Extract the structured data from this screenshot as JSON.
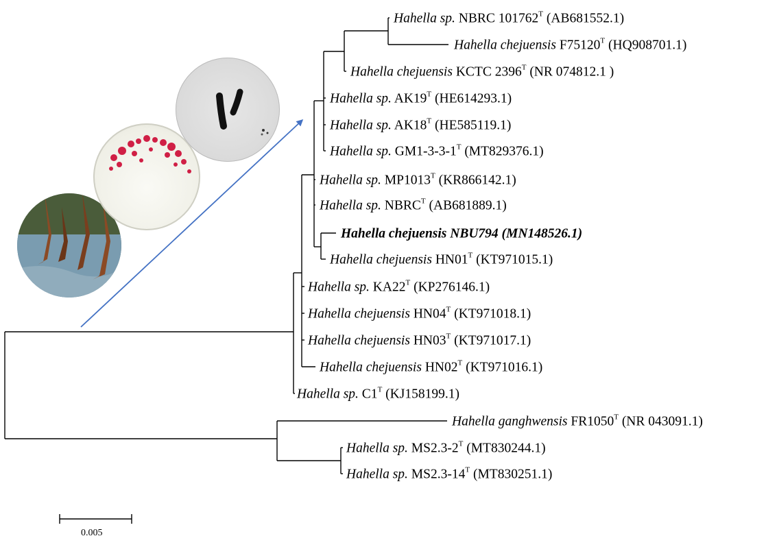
{
  "tips": [
    {
      "genus_species": "Hahella sp.",
      "strain": "NBRC 101762",
      "sup": "T",
      "accession": "(AB681552.1)"
    },
    {
      "genus_species": "Hahella chejuensis",
      "strain": "F75120",
      "sup": "T",
      "accession": "(HQ908701.1)"
    },
    {
      "genus_species": "Hahella chejuensis",
      "strain": "KCTC 2396",
      "sup": "T",
      "accession": "(NR 074812.1 )"
    },
    {
      "genus_species": "Hahella sp.",
      "strain": "AK19",
      "sup": "T",
      "accession": "(HE614293.1)"
    },
    {
      "genus_species": "Hahella sp.",
      "strain": "AK18",
      "sup": "T",
      "accession": "(HE585119.1)"
    },
    {
      "genus_species": "Hahella sp.",
      "strain": "GM1-3-3-1",
      "sup": "T",
      "accession": "(MT829376.1)"
    },
    {
      "genus_species": "Hahella sp.",
      "strain": "MP1013",
      "sup": "T",
      "accession": "(KR866142.1)"
    },
    {
      "genus_species": "Hahella sp.",
      "strain": "NBRC",
      "sup": "T",
      "accession": "(AB681889.1)"
    },
    {
      "bold_label": "Hahella chejuensis NBU794 (MN148526.1)"
    },
    {
      "genus_species": "Hahella chejuensis",
      "strain": "HN01",
      "sup": "T",
      "accession": "(KT971015.1)"
    },
    {
      "genus_species": "Hahella sp.",
      "strain": "KA22",
      "sup": "T",
      "accession": "(KP276146.1)"
    },
    {
      "genus_species": "Hahella chejuensis",
      "strain": "HN04",
      "sup": "T",
      "accession": "(KT971018.1)"
    },
    {
      "genus_species": "Hahella chejuensis",
      "strain": "HN03",
      "sup": "T",
      "accession": "(KT971017.1)"
    },
    {
      "genus_species": "Hahella chejuensis",
      "strain": "HN02",
      "sup": "T",
      "accession": "(KT971016.1)"
    },
    {
      "genus_species": "Hahella sp.",
      "strain": "C1",
      "sup": "T",
      "accession": "(KJ158199.1)"
    },
    {
      "genus_species": "Hahella ganghwensis",
      "strain": "FR1050",
      "sup": "T",
      "accession": "(NR 043091.1)"
    },
    {
      "genus_species": "Hahella sp.",
      "strain": "MS2.3-2",
      "sup": "T",
      "accession": "(MT830244.1)"
    },
    {
      "genus_species": "Hahella sp.",
      "strain": "MS2.3-14",
      "sup": "T",
      "accession": "(MT830251.1)"
    }
  ],
  "scale_bar": {
    "label": "0.005"
  },
  "photos": [
    {
      "icon": "mangrove-photo-icon"
    },
    {
      "icon": "red-colony-plate-icon"
    },
    {
      "icon": "gram-stain-micrograph-icon"
    }
  ],
  "colors": {
    "branch": "#000000",
    "arrow": "#4472C4",
    "colony": "#D01F45"
  }
}
